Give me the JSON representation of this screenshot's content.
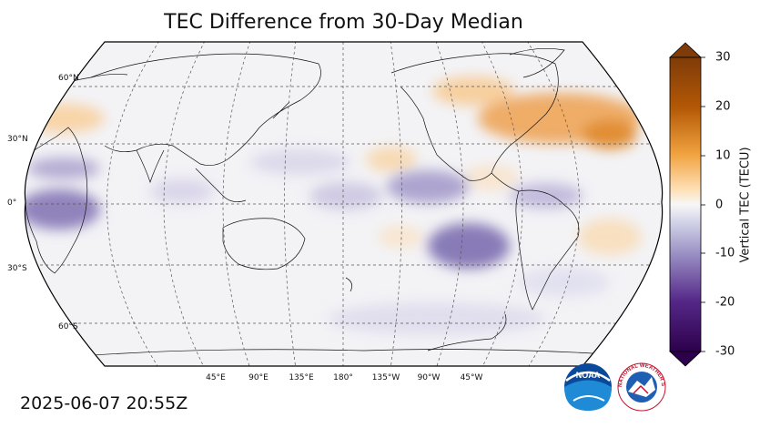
{
  "title": "TEC Difference from 30-Day Median",
  "timestamp": "2025-06-07 20:55Z",
  "colorbar": {
    "label": "Vertical TEC (TECU)",
    "ticks": [
      "30",
      "20",
      "10",
      "0",
      "-10",
      "-20",
      "-30"
    ],
    "range": [
      -30,
      30
    ],
    "colormap": "PuOr_r (purple negative, orange positive)",
    "extend": "both"
  },
  "map": {
    "projection": "Robinson",
    "central_longitude": 180,
    "lat_labels": [
      "60°N",
      "30°N",
      "0°",
      "30°S",
      "60°S"
    ],
    "lon_labels": [
      "45°E",
      "90°E",
      "135°E",
      "180°",
      "135°W",
      "90°W",
      "45°W"
    ],
    "gridlines": "dashed",
    "colors": {
      "orange_positive": "#e08a2c",
      "purple_negative": "#6a5aa6",
      "neutral": "#f3f3f5"
    },
    "anomalies": {
      "positive": [
        "North Atlantic / eastern North America",
        "central North Pacific near Hawaii",
        "western Europe / Atlantic coast",
        "South America east coast"
      ],
      "negative": [
        "western Africa and equatorial Atlantic",
        "central South Pacific",
        "equatorial central Pacific",
        "southern India"
      ]
    }
  },
  "logos": {
    "noaa": "NOAA",
    "nws": "NATIONAL WEATHER SERVICE"
  }
}
